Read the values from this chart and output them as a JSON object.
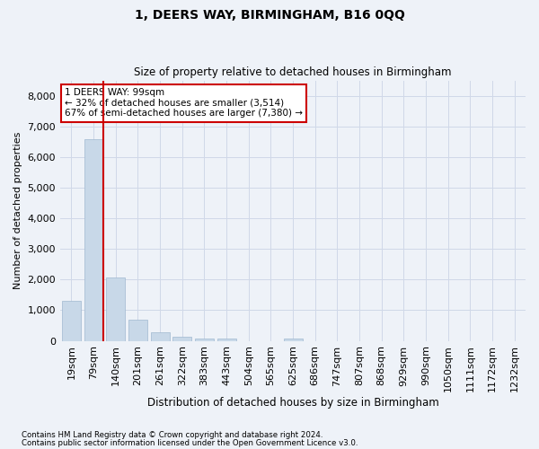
{
  "title": "1, DEERS WAY, BIRMINGHAM, B16 0QQ",
  "subtitle": "Size of property relative to detached houses in Birmingham",
  "xlabel": "Distribution of detached houses by size in Birmingham",
  "ylabel": "Number of detached properties",
  "categories": [
    "19sqm",
    "79sqm",
    "140sqm",
    "201sqm",
    "261sqm",
    "322sqm",
    "383sqm",
    "443sqm",
    "504sqm",
    "565sqm",
    "625sqm",
    "686sqm",
    "747sqm",
    "807sqm",
    "868sqm",
    "929sqm",
    "990sqm",
    "1050sqm",
    "1111sqm",
    "1172sqm",
    "1232sqm"
  ],
  "values": [
    1300,
    6580,
    2080,
    680,
    290,
    140,
    90,
    90,
    0,
    0,
    90,
    0,
    0,
    0,
    0,
    0,
    0,
    0,
    0,
    0,
    0
  ],
  "bar_color": "#c8d8e8",
  "bar_edgecolor": "#a0b8d0",
  "vline_x_pos": 1.425,
  "vline_color": "#cc0000",
  "annotation_text": "1 DEERS WAY: 99sqm\n← 32% of detached houses are smaller (3,514)\n67% of semi-detached houses are larger (7,380) →",
  "annotation_box_edgecolor": "#cc0000",
  "ylim": [
    0,
    8500
  ],
  "yticks": [
    0,
    1000,
    2000,
    3000,
    4000,
    5000,
    6000,
    7000,
    8000
  ],
  "grid_color": "#d0d8e8",
  "background_color": "#eef2f8",
  "footnote1": "Contains HM Land Registry data © Crown copyright and database right 2024.",
  "footnote2": "Contains public sector information licensed under the Open Government Licence v3.0."
}
